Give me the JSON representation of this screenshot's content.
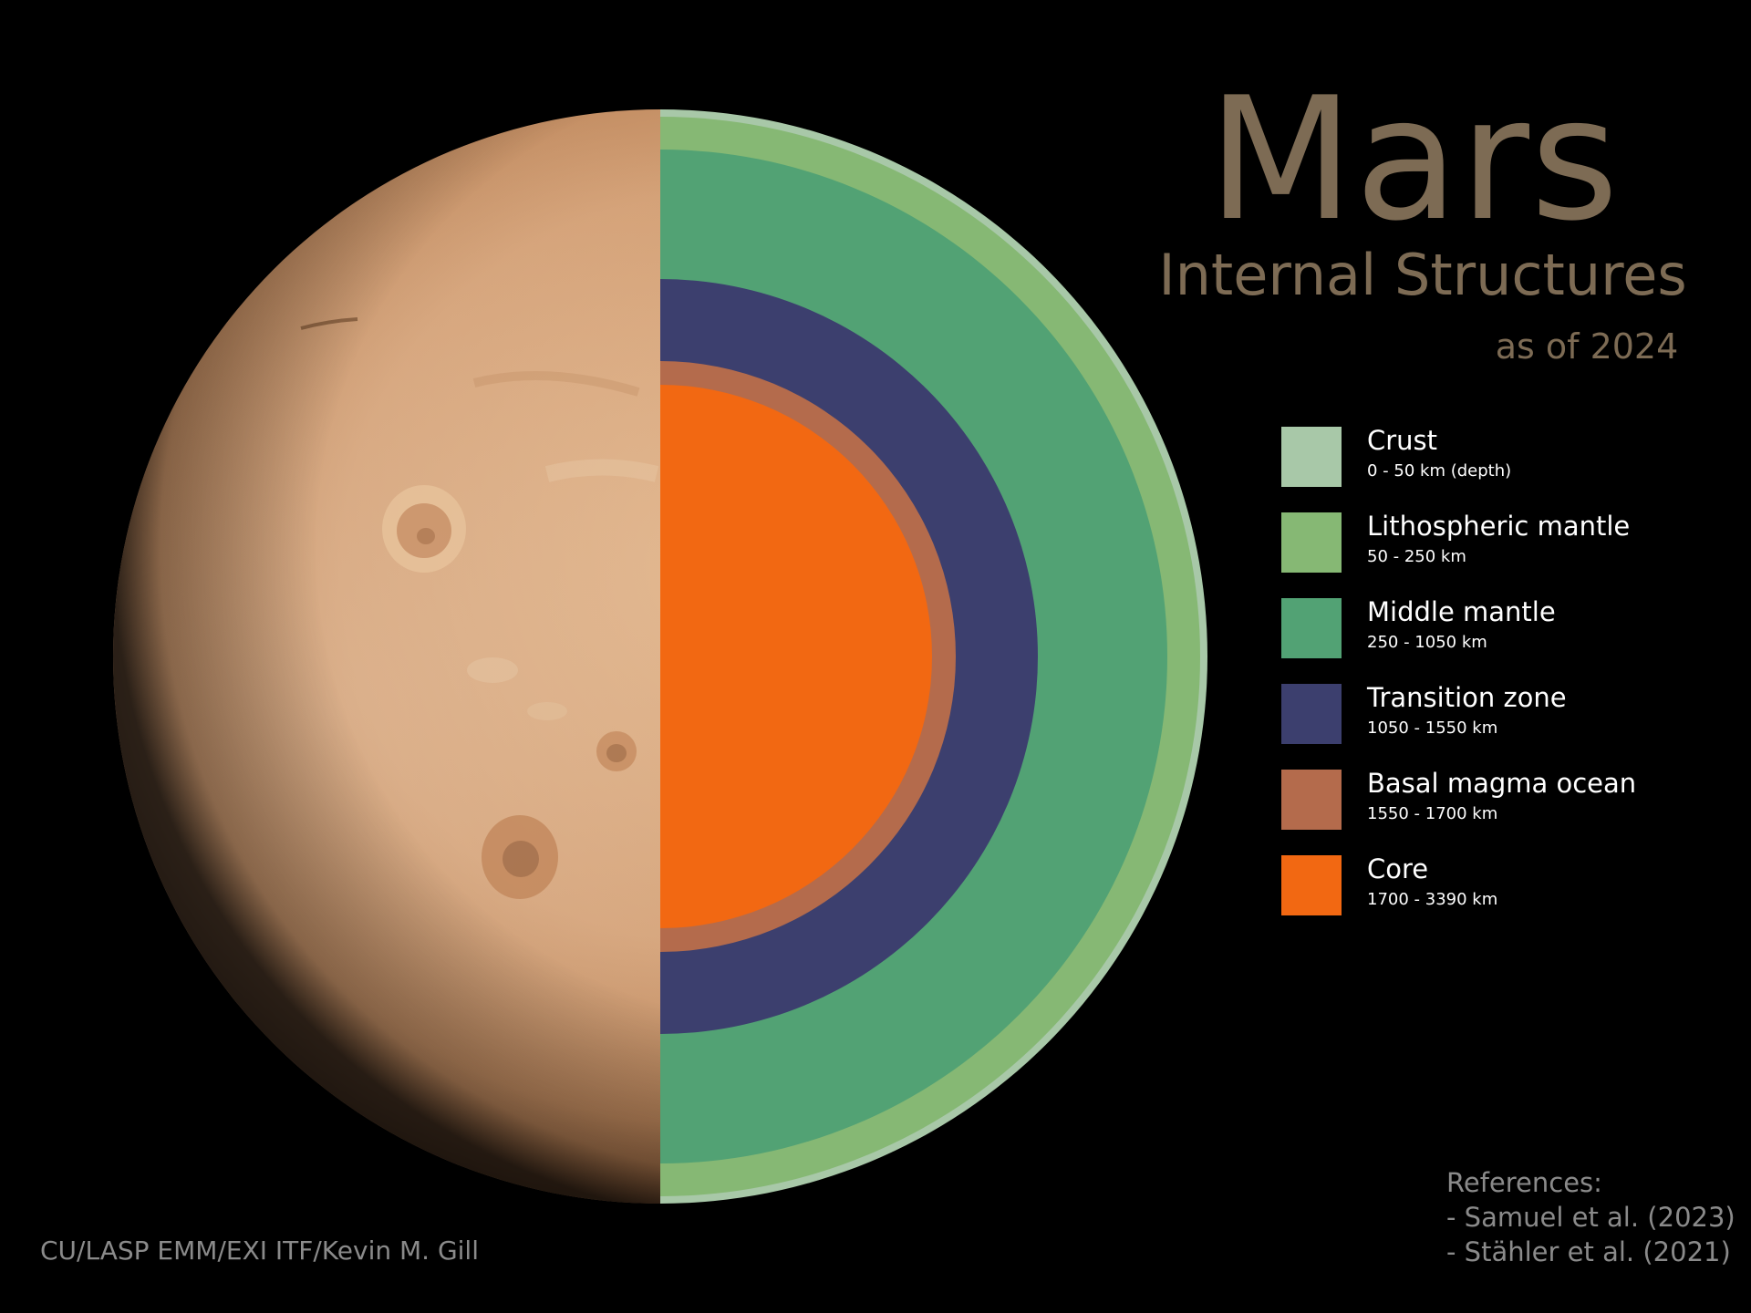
{
  "title": "Mars",
  "subtitle": "Internal Structures",
  "date_label": "as of 2024",
  "legend": [
    {
      "name": "Crust",
      "range": "0 - 50 km (depth)",
      "color": "#a8c8a8"
    },
    {
      "name": "Lithospheric mantle",
      "range": "50 - 250 km",
      "color": "#86b874"
    },
    {
      "name": "Middle mantle",
      "range": "250 - 1050 km",
      "color": "#52a274"
    },
    {
      "name": "Transition zone",
      "range": "1050 - 1550 km",
      "color": "#3c3f6e"
    },
    {
      "name": "Basal magma ocean",
      "range": "1550 - 1700 km",
      "color": "#b46b4c"
    },
    {
      "name": "Core",
      "range": "1700 - 3390 km",
      "color": "#f26812"
    }
  ],
  "credit": "CU/LASP EMM/EXI ITF/Kevin M. Gill",
  "references": {
    "heading": "References:",
    "items": [
      "- Samuel et al. (2023)",
      "- Stähler et al. (2021)"
    ]
  },
  "planet_colors": {
    "surface_light": "#e1b48a",
    "surface_mid": "#c98e5f",
    "surface_dark": "#6b4326",
    "background": "#000000"
  }
}
